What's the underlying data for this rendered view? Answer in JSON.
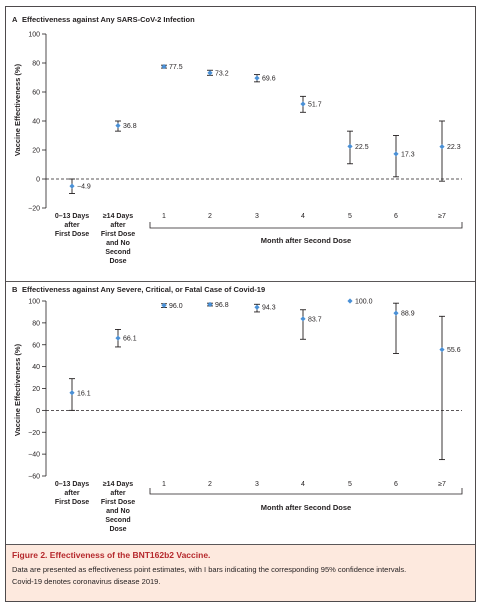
{
  "panels": [
    {
      "letter": "A",
      "title": "Effectiveness against Any SARS-CoV-2 Infection",
      "ylabel": "Vaccine Effectiveness (%)",
      "yticks": [
        "100",
        "80",
        "60",
        "40",
        "20",
        "0",
        "−20"
      ]
    },
    {
      "letter": "B",
      "title": "Effectiveness against Any Severe, Critical, or Fatal Case of Covid-19",
      "ylabel": "Vaccine Effectiveness (%)",
      "yticks": [
        "100",
        "80",
        "60",
        "40",
        "20",
        "0",
        "−20",
        "−40",
        "−60"
      ]
    }
  ],
  "x_categories": {
    "first_dose": [
      "0–13 Days",
      "after",
      "First Dose"
    ],
    "second_dose": [
      "≥14 Days",
      "after",
      "First Dose",
      "and No",
      "Second",
      "Dose"
    ],
    "months": [
      "1",
      "2",
      "3",
      "4",
      "5",
      "6",
      "≥7"
    ],
    "month_group_label": "Month after Second Dose"
  },
  "caption": {
    "title": "Figure 2. Effectiveness of the BNT162b2 Vaccine.",
    "line1": "Data are presented as effectiveness point estimates, with I bars indicating the corresponding 95% confidence intervals.",
    "line2": "Covid-19 denotes coronavirus disease 2019."
  },
  "colors": {
    "point": "#4a90d6",
    "caption_title": "#b5282c",
    "caption_bg": "#fde9de",
    "frame": "#231f20"
  },
  "chart_data": [
    {
      "type": "scatter",
      "title": "Effectiveness against Any SARS-CoV-2 Infection",
      "ylabel": "Vaccine Effectiveness (%)",
      "xlabel": "Month after Second Dose",
      "ylim": [
        -20,
        100
      ],
      "reference_line": 0,
      "categories": [
        "0–13 Days after First Dose",
        "≥14 Days after First Dose and No Second Dose",
        "1",
        "2",
        "3",
        "4",
        "5",
        "6",
        "≥7"
      ],
      "values": [
        -4.9,
        36.8,
        77.5,
        73.2,
        69.6,
        51.7,
        22.5,
        17.3,
        22.3
      ],
      "labels": [
        "−4.9",
        "36.8",
        "77.5",
        "73.2",
        "69.6",
        "51.7",
        "22.5",
        "17.3",
        "22.3"
      ],
      "ci_low": [
        -10,
        33,
        76.5,
        71.5,
        67,
        46,
        10.5,
        1.5,
        -1.5
      ],
      "ci_high": [
        0,
        40,
        78.5,
        75,
        72,
        57,
        33,
        30,
        40
      ]
    },
    {
      "type": "scatter",
      "title": "Effectiveness against Any Severe, Critical, or Fatal Case of Covid-19",
      "ylabel": "Vaccine Effectiveness (%)",
      "xlabel": "Month after Second Dose",
      "ylim": [
        -60,
        100
      ],
      "reference_line": 0,
      "categories": [
        "0–13 Days after First Dose",
        "≥14 Days after First Dose and No Second Dose",
        "1",
        "2",
        "3",
        "4",
        "5",
        "6",
        "≥7"
      ],
      "values": [
        16.1,
        66.1,
        96.0,
        96.8,
        94.3,
        83.7,
        100.0,
        88.9,
        55.6
      ],
      "labels": [
        "16.1",
        "66.1",
        "96.0",
        "96.8",
        "94.3",
        "83.7",
        "100.0",
        "88.9",
        "55.6"
      ],
      "ci_low": [
        0,
        58,
        94,
        95.5,
        90,
        65,
        100,
        52,
        -45
      ],
      "ci_high": [
        29,
        74,
        97.5,
        98,
        97,
        92,
        100,
        98,
        86
      ]
    }
  ]
}
